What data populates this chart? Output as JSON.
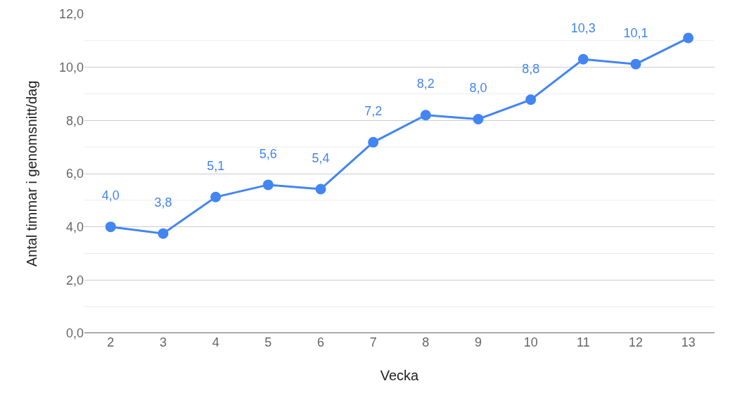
{
  "chart_data": {
    "type": "line",
    "xlabel": "Vecka",
    "ylabel": "Antal timmar i genomsnitt/dag",
    "categories": [
      "2",
      "3",
      "4",
      "5",
      "6",
      "7",
      "8",
      "9",
      "10",
      "11",
      "12",
      "13"
    ],
    "series": [
      {
        "color": "#4285f4",
        "values": [
          4.0,
          3.75,
          5.12,
          5.58,
          5.42,
          7.18,
          8.2,
          8.05,
          8.78,
          10.3,
          10.12,
          11.1
        ],
        "value_labels": [
          "4,0",
          "3,8",
          "5,1",
          "5,6",
          "5,4",
          "7,2",
          "8,2",
          "8,0",
          "8,8",
          "10,3",
          "10,1",
          null
        ]
      }
    ],
    "ylim": [
      0,
      12
    ],
    "yticks": [
      {
        "value": 0,
        "label": "0,0"
      },
      {
        "value": 1,
        "label": null
      },
      {
        "value": 2,
        "label": "2,0"
      },
      {
        "value": 3,
        "label": null
      },
      {
        "value": 4,
        "label": "4,0"
      },
      {
        "value": 5,
        "label": null
      },
      {
        "value": 6,
        "label": "6,0"
      },
      {
        "value": 7,
        "label": null
      },
      {
        "value": 8,
        "label": "8,0"
      },
      {
        "value": 9,
        "label": null
      },
      {
        "value": 10,
        "label": "10,0"
      },
      {
        "value": 11,
        "label": null
      },
      {
        "value": 12,
        "label": "12,0"
      }
    ],
    "grid": "y",
    "marker": "circle",
    "line_style": "solid"
  }
}
